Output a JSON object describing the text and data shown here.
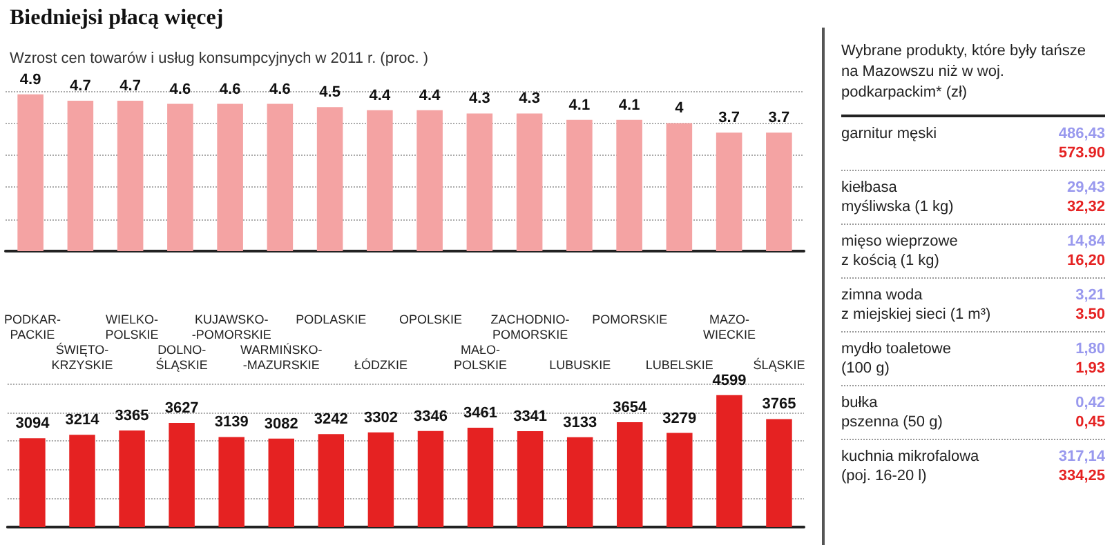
{
  "chart_data": [
    {
      "type": "bar",
      "title": "Biedniejsi płacą więcej",
      "subtitle": "Wzrost cen towarów i usług konsumpcyjnych w 2011 r. (proc. )",
      "categories": [
        null,
        null,
        null,
        null,
        null,
        null,
        null,
        null,
        null,
        null,
        null,
        null,
        null,
        null,
        null,
        null
      ],
      "series": [
        {
          "color": "#f4a3a3",
          "values": [
            4.9,
            4.7,
            4.7,
            4.6,
            4.6,
            4.6,
            4.5,
            4.4,
            4.4,
            4.3,
            4.3,
            4.1,
            4.1,
            4,
            3.7,
            3.7
          ]
        }
      ],
      "ylim": [
        0,
        5
      ],
      "yticks": [
        {
          "value": 0,
          "label": null
        },
        {
          "value": 1,
          "label": null
        },
        {
          "value": 2,
          "label": null
        },
        {
          "value": 3,
          "label": null
        },
        {
          "value": 4,
          "label": null
        },
        {
          "value": 5,
          "label": null
        }
      ],
      "grid": "y",
      "data_labels": true,
      "tick_labels": false
    },
    {
      "type": "bar",
      "categories": [
        "PODKAR-\nPACKIE",
        "ŚWIĘTO-\nKRZYSKIE",
        "WIELKO-\nPOLSKIE",
        "DOLNO-\nŚLĄSKIE",
        "KUJAWSKO-\n-POMORSKIE",
        "WARMIŃSKO-\n-MAZURSKIE",
        "PODLASKIE",
        "ŁÓDZKIE",
        "OPOLSKIE",
        "MAŁO-\nPOLSKIE",
        "ZACHODNIO-\nPOMORSKIE",
        "LUBUSKIE",
        "POMORSKIE",
        "LUBELSKIE",
        "MAZO-\nWIECKIE",
        "ŚLĄSKIE"
      ],
      "series": [
        {
          "color": "#e52222",
          "values": [
            3094,
            3214,
            3365,
            3627,
            3139,
            3082,
            3242,
            3302,
            3346,
            3461,
            3341,
            3133,
            3654,
            3279,
            4599,
            3765
          ]
        }
      ],
      "ylim": [
        0,
        5000
      ],
      "yticks": [
        {
          "value": 0,
          "label": null
        },
        {
          "value": 1000,
          "label": null
        },
        {
          "value": 2000,
          "label": null
        },
        {
          "value": 3000,
          "label": null
        },
        {
          "value": 4000,
          "label": null
        },
        {
          "value": 5000,
          "label": null
        }
      ],
      "grid": "y",
      "data_labels": true,
      "tick_labels": "x"
    },
    {
      "type": "other",
      "title": "Wybrane produkty, które były tańsze na Mazowszu niż w woj. podkarpackim* (zł)",
      "categories": [
        "garnitur męski",
        "kiełbasa\nmyśliwska (1 kg)",
        "mięso wieprzowe\nz kością (1 kg)",
        "zimna woda\nz miejskiej sieci (1 m³)",
        "mydło toaletowe\n(100 g)",
        "bułka\npszenna (50 g)",
        "kuchnia mikrofalowa\n(poj. 16-20 l)"
      ],
      "series": [
        {
          "color": "#9999ee",
          "values": [
            486.43,
            29.43,
            14.84,
            3.21,
            1.8,
            0.42,
            317.14
          ],
          "value_labels": [
            "486,43",
            "29,43",
            "14,84",
            "3,21",
            "1,80",
            "0,42",
            "317,14"
          ]
        },
        {
          "color": "#e52222",
          "values": [
            573.9,
            32.32,
            16.2,
            3.5,
            1.93,
            0.45,
            334.25
          ],
          "value_labels": [
            "573.90",
            "32,32",
            "16,20",
            "3.50",
            "1,93",
            "0,45",
            "334,25"
          ]
        }
      ]
    }
  ]
}
